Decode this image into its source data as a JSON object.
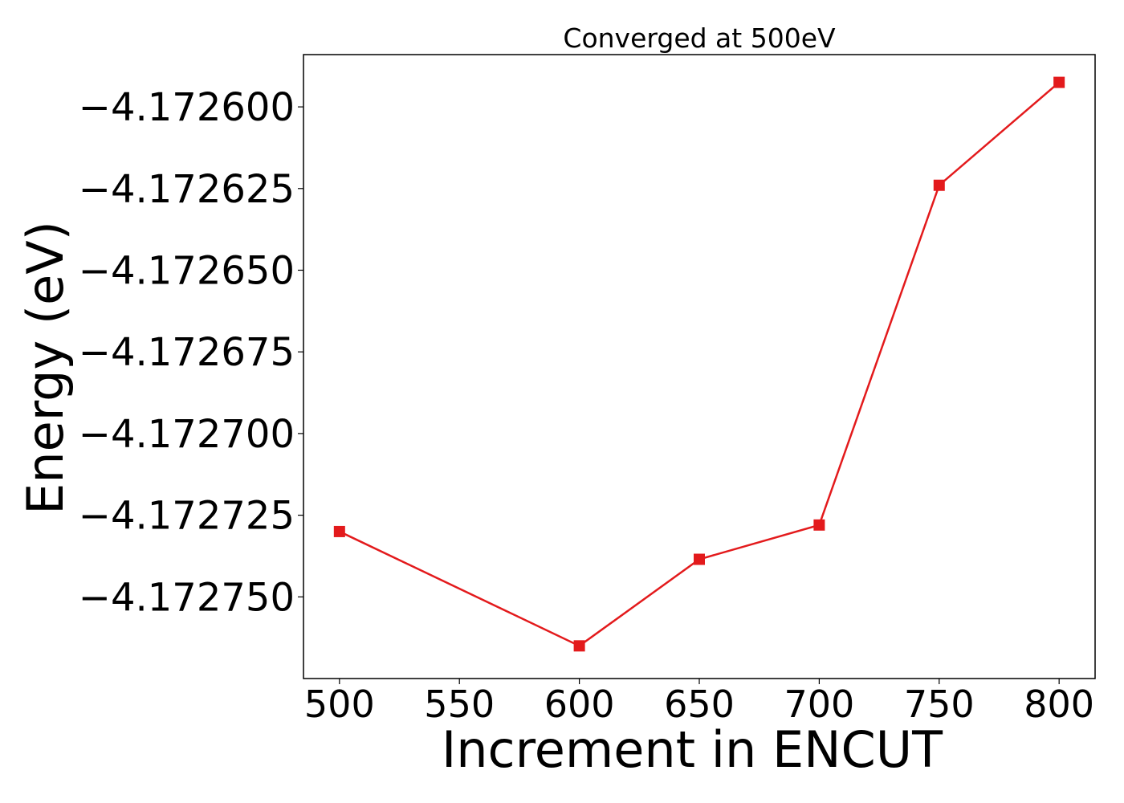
{
  "chart_data": {
    "type": "line",
    "title": "Converged at 500eV",
    "xlabel": "Increment in ENCUT",
    "ylabel": "Energy (eV)",
    "x": [
      500,
      600,
      650,
      700,
      750,
      800
    ],
    "series": [
      {
        "color": "#e31a1c",
        "marker": "square",
        "values": [
          -4.17273,
          -4.172765,
          -4.1727385,
          -4.172728,
          -4.172624,
          -4.1725925
        ]
      }
    ],
    "xlim": [
      485,
      815
    ],
    "ylim": [
      -4.172775,
      -4.172584
    ],
    "xticks": [
      500,
      550,
      600,
      650,
      700,
      750,
      800
    ],
    "xtick_labels": [
      "500",
      "550",
      "600",
      "650",
      "700",
      "750",
      "800"
    ],
    "yticks": [
      -4.1726,
      -4.172625,
      -4.17265,
      -4.172675,
      -4.1727,
      -4.172725,
      -4.17275
    ],
    "ytick_labels": [
      "−4.172600",
      "−4.172625",
      "−4.172650",
      "−4.172675",
      "−4.172700",
      "−4.172725",
      "−4.172750"
    ],
    "grid": false,
    "legend": "none"
  }
}
